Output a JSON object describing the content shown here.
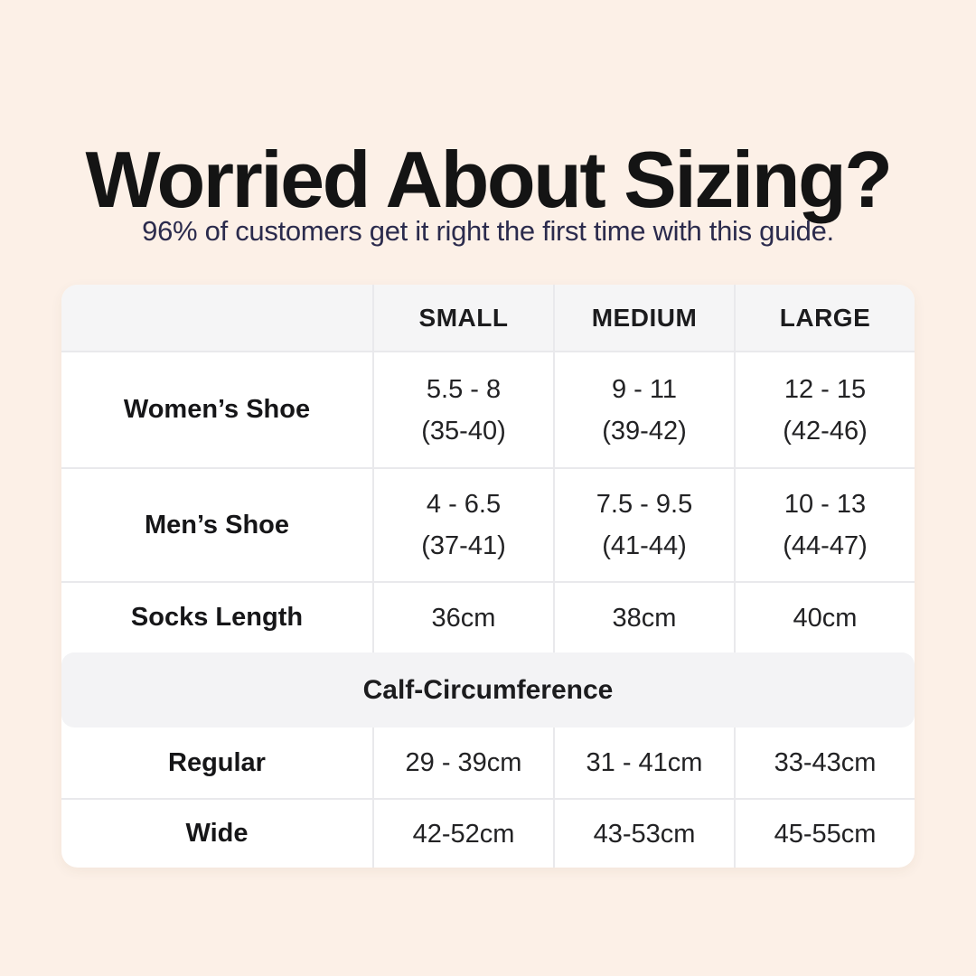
{
  "colors": {
    "background": "#fcf0e7",
    "card": "#ffffff",
    "header_bg": "#f5f5f6",
    "band_bg": "#f3f3f5",
    "divider": "#e9e9ec",
    "title_text": "#141414",
    "subtitle_text": "#2b2b4d",
    "table_text": "#222224"
  },
  "header": {
    "title": "Worried About Sizing?",
    "subtitle": "96% of customers get it right the first time with this guide."
  },
  "table": {
    "columns": [
      "",
      "SMALL",
      "MEDIUM",
      "LARGE"
    ],
    "size_rows": [
      {
        "label": "Women’s Shoe",
        "cells": [
          {
            "line1": "5.5 - 8",
            "line2": "(35-40)"
          },
          {
            "line1": "9 - 11",
            "line2": "(39-42)"
          },
          {
            "line1": "12 - 15",
            "line2": "(42-46)"
          }
        ]
      },
      {
        "label": "Men’s Shoe",
        "cells": [
          {
            "line1": "4 - 6.5",
            "line2": "(37-41)"
          },
          {
            "line1": "7.5 - 9.5",
            "line2": "(41-44)"
          },
          {
            "line1": "10 - 13",
            "line2": "(44-47)"
          }
        ]
      },
      {
        "label": "Socks Length",
        "cells": [
          {
            "line1": "36cm"
          },
          {
            "line1": "38cm"
          },
          {
            "line1": "40cm"
          }
        ]
      }
    ],
    "section_title": "Calf-Circumference",
    "calf_rows": [
      {
        "label": "Regular",
        "cells": [
          {
            "line1": "29 - 39cm"
          },
          {
            "line1": "31 - 41cm"
          },
          {
            "line1": "33-43cm"
          }
        ]
      },
      {
        "label": "Wide",
        "cells": [
          {
            "line1": "42-52cm"
          },
          {
            "line1": "43-53cm"
          },
          {
            "line1": "45-55cm"
          }
        ]
      }
    ]
  },
  "chart_data": {
    "type": "table",
    "title": "Worried About Sizing?",
    "subtitle": "96% of customers get it right the first time with this guide.",
    "columns": [
      "",
      "SMALL",
      "MEDIUM",
      "LARGE"
    ],
    "rows": [
      {
        "label": "Women’s Shoe",
        "values": [
          "5.5 - 8 (35-40)",
          "9 - 11 (39-42)",
          "12 - 15 (42-46)"
        ]
      },
      {
        "label": "Men’s Shoe",
        "values": [
          "4 - 6.5 (37-41)",
          "7.5 - 9.5 (41-44)",
          "10 - 13 (44-47)"
        ]
      },
      {
        "label": "Socks Length",
        "values": [
          "36cm",
          "38cm",
          "40cm"
        ]
      },
      {
        "label": "Calf-Circumference",
        "section_header": true,
        "values": []
      },
      {
        "label": "Regular",
        "values": [
          "29 - 39cm",
          "31 - 41cm",
          "33-43cm"
        ]
      },
      {
        "label": "Wide",
        "values": [
          "42-52cm",
          "43-53cm",
          "45-55cm"
        ]
      }
    ]
  }
}
